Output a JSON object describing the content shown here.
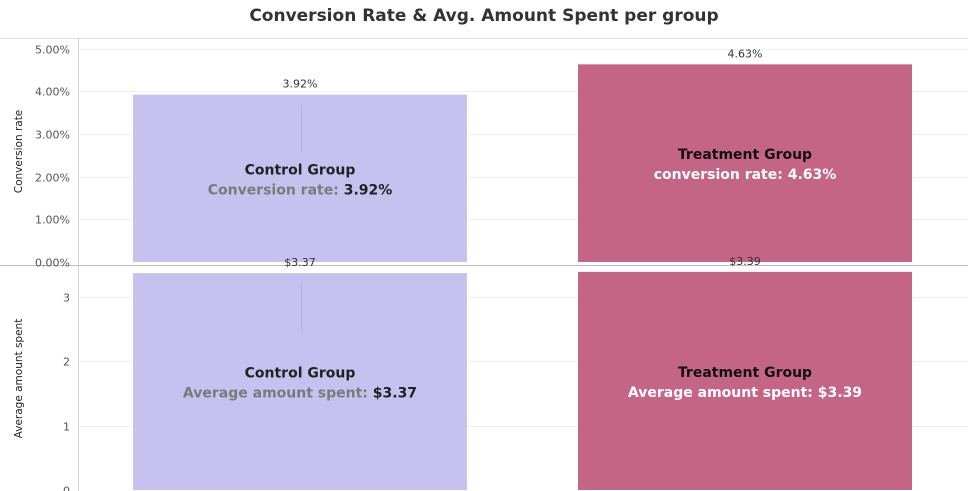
{
  "chart_data": {
    "type": "bar",
    "title": "Conversion Rate & Avg. Amount Spent per group",
    "categories": [
      "Control Group",
      "Treatment Group"
    ],
    "colors": [
      "#c6c1ef",
      "#c46585"
    ],
    "panels": [
      {
        "ylabel": "Conversion rate",
        "ylim": [
          0,
          5.2
        ],
        "yticks": [
          0,
          1,
          2,
          3,
          4,
          5
        ],
        "yticklabels": [
          "0.00%",
          "1.00%",
          "2.00%",
          "3.00%",
          "4.00%",
          "5.00%"
        ],
        "values": [
          3.92,
          4.63
        ],
        "data_labels": [
          "3.92%",
          "4.63%"
        ],
        "bar_names": [
          "Control Group",
          "Treatment Group"
        ],
        "metric_labels": [
          "Conversion rate: ",
          "conversion rate: "
        ],
        "metric_values": [
          "3.92%",
          "4.63%"
        ]
      },
      {
        "ylabel": "Average amount spent",
        "ylim": [
          0,
          3.45
        ],
        "yticks": [
          0,
          1,
          2,
          3
        ],
        "yticklabels": [
          "0",
          "1",
          "2",
          "3"
        ],
        "values": [
          3.37,
          3.39
        ],
        "data_labels": [
          "$3.37",
          "$3.39"
        ],
        "bar_names": [
          "Control Group",
          "Treatment Group"
        ],
        "metric_labels": [
          "Average amount spent: ",
          "Average amount spent: "
        ],
        "metric_values": [
          "$3.37",
          "$3.39"
        ]
      }
    ]
  }
}
